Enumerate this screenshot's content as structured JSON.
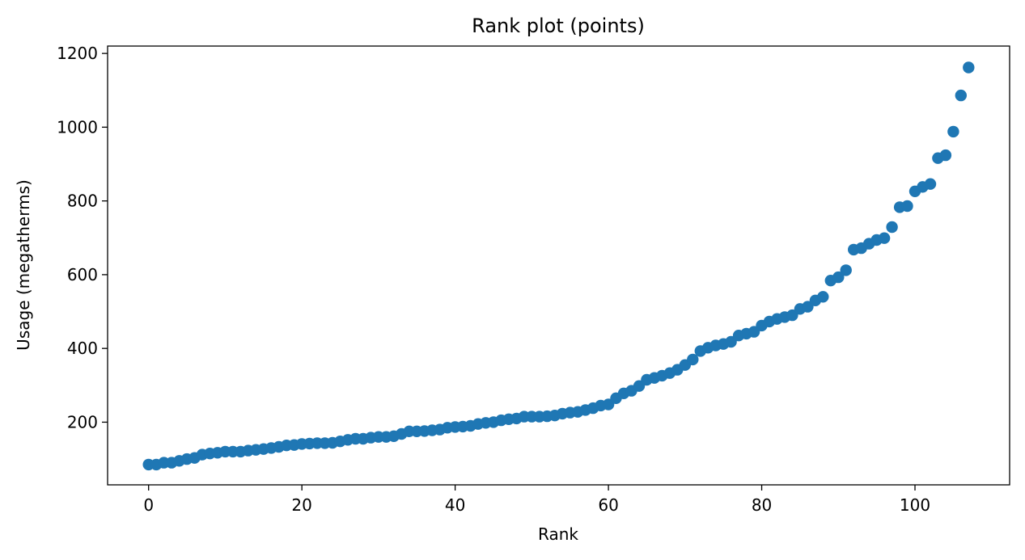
{
  "chart_data": {
    "type": "scatter",
    "title": "Rank plot (points)",
    "xlabel": "Rank",
    "ylabel": "Usage (megatherms)",
    "xlim": [
      -5.35,
      112.35
    ],
    "ylim": [
      30,
      1220
    ],
    "xticks": [
      0,
      20,
      40,
      60,
      80,
      100
    ],
    "yticks": [
      200,
      400,
      600,
      800,
      1000,
      1200
    ],
    "grid": false,
    "legend": false,
    "point_color": "#1f77b4",
    "x": [
      0,
      1,
      2,
      3,
      4,
      5,
      6,
      7,
      8,
      9,
      10,
      11,
      12,
      13,
      14,
      15,
      16,
      17,
      18,
      19,
      20,
      21,
      22,
      23,
      24,
      25,
      26,
      27,
      28,
      29,
      30,
      31,
      32,
      33,
      34,
      35,
      36,
      37,
      38,
      39,
      40,
      41,
      42,
      43,
      44,
      45,
      46,
      47,
      48,
      49,
      50,
      51,
      52,
      53,
      54,
      55,
      56,
      57,
      58,
      59,
      60,
      61,
      62,
      63,
      64,
      65,
      66,
      67,
      68,
      69,
      70,
      71,
      72,
      73,
      74,
      75,
      76,
      77,
      78,
      79,
      80,
      81,
      82,
      83,
      84,
      85,
      86,
      87,
      88,
      89,
      90,
      91,
      92,
      93,
      94,
      95,
      96,
      97,
      98,
      99,
      100,
      101,
      102,
      103,
      104,
      105,
      106,
      107
    ],
    "y": [
      85,
      85,
      90,
      90,
      95,
      100,
      103,
      112,
      115,
      117,
      120,
      120,
      120,
      123,
      125,
      127,
      130,
      133,
      137,
      138,
      141,
      142,
      143,
      143,
      144,
      148,
      152,
      155,
      155,
      158,
      160,
      160,
      162,
      168,
      175,
      175,
      176,
      178,
      180,
      185,
      187,
      188,
      190,
      195,
      198,
      200,
      205,
      208,
      210,
      215,
      215,
      215,
      216,
      218,
      223,
      226,
      228,
      233,
      238,
      245,
      248,
      265,
      278,
      285,
      298,
      315,
      320,
      326,
      333,
      342,
      355,
      370,
      393,
      402,
      408,
      412,
      418,
      435,
      440,
      445,
      462,
      473,
      480,
      485,
      490,
      507,
      513,
      530,
      540,
      584,
      593,
      612,
      668,
      672,
      684,
      694,
      699,
      729,
      783,
      786,
      826,
      838,
      846,
      916,
      924,
      988,
      1086,
      1162
    ]
  }
}
